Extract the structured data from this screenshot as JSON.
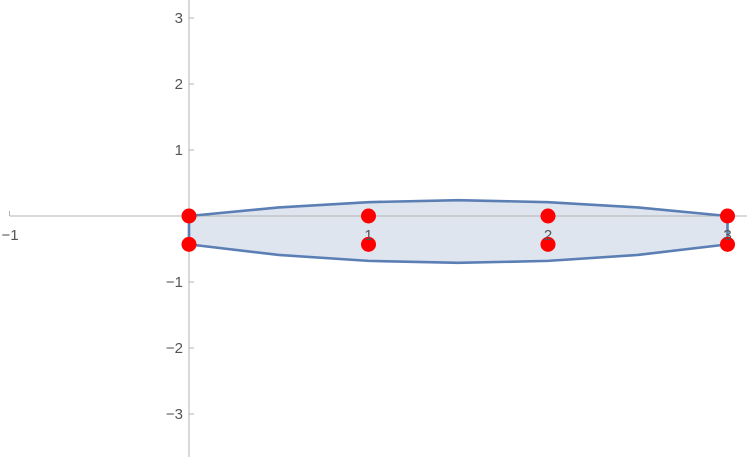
{
  "chart_data": {
    "type": "area",
    "title": "",
    "xlabel": "",
    "ylabel": "",
    "xlim": [
      -1,
      3.1
    ],
    "ylim": [
      -3.6,
      3.3
    ],
    "grid": false,
    "x_ticks": [
      {
        "value": -1,
        "label": "−1"
      },
      {
        "value": 1,
        "label": "1"
      },
      {
        "value": 2,
        "label": "2"
      },
      {
        "value": 3,
        "label": "3"
      }
    ],
    "y_ticks": [
      {
        "value": 3,
        "label": "3"
      },
      {
        "value": 2,
        "label": "2"
      },
      {
        "value": 1,
        "label": "1"
      },
      {
        "value": -1,
        "label": "−1"
      },
      {
        "value": -2,
        "label": "−2"
      },
      {
        "value": -3,
        "label": "−3"
      }
    ],
    "upper_curve": {
      "x": [
        0,
        0.5,
        1,
        1.5,
        2,
        2.5,
        3
      ],
      "y": [
        0,
        0.13,
        0.21,
        0.24,
        0.21,
        0.13,
        0
      ]
    },
    "lower_curve": {
      "x": [
        0,
        0.5,
        1,
        1.5,
        2,
        2.5,
        3
      ],
      "y": [
        -0.43,
        -0.59,
        -0.68,
        -0.71,
        -0.68,
        -0.59,
        -0.43
      ]
    },
    "points": [
      {
        "x": 0,
        "y": 0
      },
      {
        "x": 1,
        "y": 0
      },
      {
        "x": 2,
        "y": 0
      },
      {
        "x": 3,
        "y": 0
      },
      {
        "x": 0,
        "y": -0.43
      },
      {
        "x": 1,
        "y": -0.43
      },
      {
        "x": 2,
        "y": -0.43
      },
      {
        "x": 3,
        "y": -0.43
      }
    ],
    "colors": {
      "curve": "#5b7fb5",
      "fill": "#dfe5ef",
      "points": "#ff0000",
      "axes": "#b3b3b3",
      "labels": "#555555"
    }
  }
}
